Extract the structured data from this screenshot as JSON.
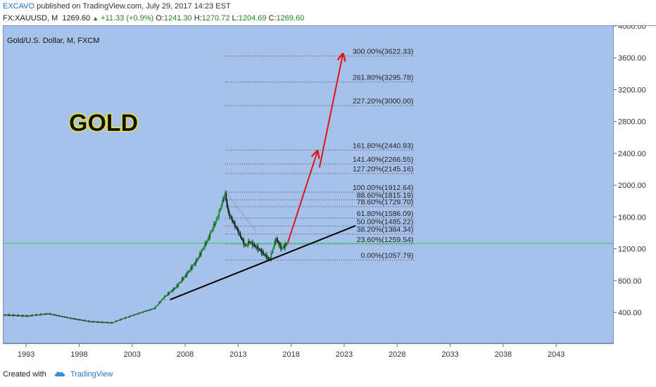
{
  "header": {
    "publisher": "EXCAVO",
    "published_text": "published on TradingView.com, July 29, 2017 14:23 EST",
    "symbol": "FX:XAUUSD, M",
    "last": "1269.60",
    "change": "+11.33 (+0.9%)",
    "o_label": "O:",
    "o_value": "1241.30",
    "h_label": "H:",
    "h_value": "1270.72",
    "l_label": "L:",
    "l_value": "1204.69",
    "c_label": "C:",
    "c_value": "1269.60"
  },
  "chart_title": "Gold/U.S. Dollar, M, FXCM",
  "annotation_text": "GOLD",
  "footer": {
    "created_with": "Created with",
    "brand": "TradingView"
  },
  "colors": {
    "background": "#a7c2ea",
    "candle_up": "#1f8a3a",
    "candle_down": "#222222",
    "arrow": "#e0151b",
    "trendline": "#000000",
    "current_price_line": "#35d04a"
  },
  "chart_data": {
    "type": "line",
    "x_axis": {
      "ticks": [
        "1993",
        "1998",
        "2003",
        "2008",
        "2013",
        "2018",
        "2023",
        "2028",
        "2033",
        "2038",
        "2043"
      ],
      "range": [
        1990.8,
        2048.3
      ]
    },
    "y_axis": {
      "ticks": [
        "400.00",
        "800.00",
        "1200.00",
        "1600.00",
        "2000.00",
        "2400.00",
        "2800.00",
        "3200.00",
        "3600.00",
        "4000.00"
      ],
      "range": [
        20,
        4000
      ]
    },
    "series": [
      {
        "x": [
          1990.8,
          1993,
          1995,
          1997,
          1999,
          2001,
          2002,
          2003,
          2004,
          2005,
          2006,
          2007,
          2008,
          2009,
          2010,
          2011,
          2011.7,
          2012,
          2013,
          2013.6,
          2014,
          2015,
          2015.9,
          2016.5,
          2017,
          2017.6
        ],
        "y": [
          370,
          355,
          385,
          330,
          285,
          270,
          320,
          365,
          410,
          450,
          600,
          710,
          870,
          1050,
          1300,
          1600,
          1900,
          1650,
          1400,
          1230,
          1290,
          1180,
          1060,
          1330,
          1200,
          1269.6
        ]
      }
    ],
    "fibonacci_levels": [
      {
        "label": "0.00%(1057.79)",
        "value": 1057.79
      },
      {
        "label": "23.60%(1259.54)",
        "value": 1259.54
      },
      {
        "label": "38.20%(1384.34)",
        "value": 1384.34
      },
      {
        "label": "50.00%(1485.22)",
        "value": 1485.22
      },
      {
        "label": "61.80%(1586.09)",
        "value": 1586.09
      },
      {
        "label": "78.60%(1729.70)",
        "value": 1729.7
      },
      {
        "label": "88.60%(1815.19)",
        "value": 1815.19
      },
      {
        "label": "100.00%(1912.64)",
        "value": 1912.64
      },
      {
        "label": "127.20%(2145.16)",
        "value": 2145.16
      },
      {
        "label": "141.40%(2266.55)",
        "value": 2266.55
      },
      {
        "label": "161.80%(2440.93)",
        "value": 2440.93
      },
      {
        "label": "227.20%(3000.00)",
        "value": 3000.0
      },
      {
        "label": "261.80%(3295.78)",
        "value": 3295.78
      },
      {
        "label": "300.00%(3622.33)",
        "value": 3622.33
      }
    ],
    "fib_range_x": [
      2011.7,
      2029.6
    ],
    "trendline": {
      "x": [
        2006.5,
        2024.0
      ],
      "y": [
        560,
        1490
      ]
    },
    "arrows": [
      {
        "x": [
          2017.6,
          2020.4
        ],
        "y": [
          1269.6,
          2420
        ]
      },
      {
        "x": [
          2020.6,
          2022.8
        ],
        "y": [
          2220,
          3640
        ]
      }
    ],
    "current_price": 1269.6,
    "grid": false,
    "legend": "none"
  }
}
